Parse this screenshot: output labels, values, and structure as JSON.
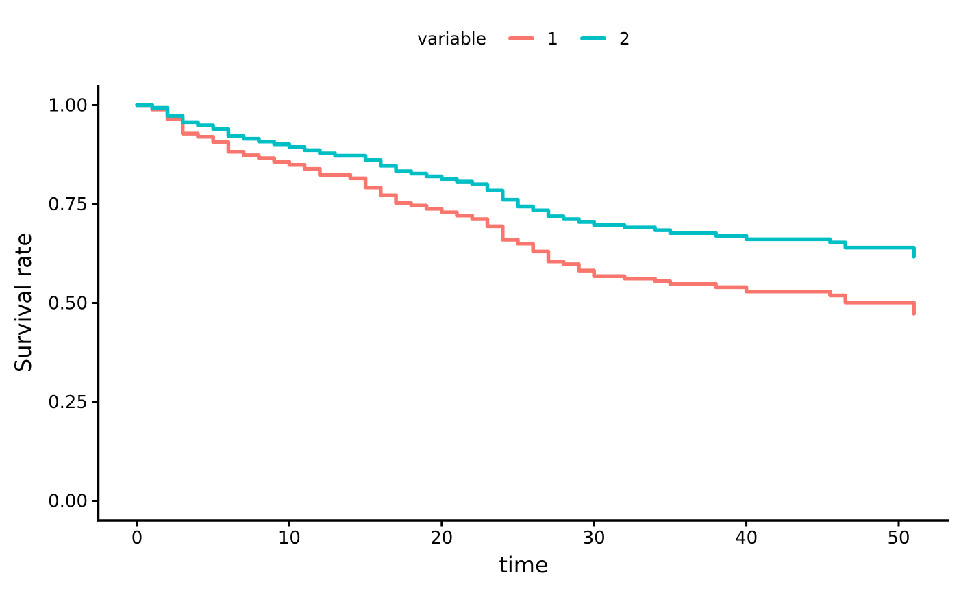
{
  "legend": {
    "title": "variable",
    "items": [
      {
        "label": "1",
        "color": "#F8766D"
      },
      {
        "label": "2",
        "color": "#00BFC4"
      }
    ]
  },
  "x_axis": {
    "label": "time",
    "ticks": [
      0,
      10,
      20,
      30,
      40,
      50
    ]
  },
  "y_axis": {
    "label": "Survival rate",
    "ticks": [
      "1.00",
      "0.75",
      "0.50",
      "0.25",
      "0.00"
    ],
    "tick_values": [
      1.0,
      0.75,
      0.5,
      0.25,
      0.0
    ]
  },
  "chart_data": {
    "type": "line",
    "subtype": "step-survival",
    "title": "",
    "xlabel": "time",
    "ylabel": "Survival rate",
    "xlim": [
      0,
      51
    ],
    "ylim": [
      0.0,
      1.0
    ],
    "grid": false,
    "legend_position": "top",
    "legend_title": "variable",
    "series": [
      {
        "name": "1",
        "color": "#F8766D",
        "points": [
          [
            0,
            1.0
          ],
          [
            1,
            0.989
          ],
          [
            2,
            0.964
          ],
          [
            3,
            0.928
          ],
          [
            4,
            0.92
          ],
          [
            5,
            0.907
          ],
          [
            6,
            0.882
          ],
          [
            7,
            0.873
          ],
          [
            8,
            0.866
          ],
          [
            9,
            0.857
          ],
          [
            10,
            0.849
          ],
          [
            11,
            0.839
          ],
          [
            12,
            0.824
          ],
          [
            14,
            0.815
          ],
          [
            15,
            0.792
          ],
          [
            16,
            0.772
          ],
          [
            17,
            0.752
          ],
          [
            18,
            0.746
          ],
          [
            19,
            0.738
          ],
          [
            20,
            0.729
          ],
          [
            21,
            0.721
          ],
          [
            22,
            0.712
          ],
          [
            23,
            0.694
          ],
          [
            24,
            0.66
          ],
          [
            25,
            0.65
          ],
          [
            26,
            0.63
          ],
          [
            27,
            0.605
          ],
          [
            28,
            0.598
          ],
          [
            29,
            0.582
          ],
          [
            30,
            0.568
          ],
          [
            32,
            0.562
          ],
          [
            34,
            0.555
          ],
          [
            35,
            0.548
          ],
          [
            38,
            0.54
          ],
          [
            40,
            0.529
          ],
          [
            45.5,
            0.519
          ],
          [
            46.5,
            0.501
          ],
          [
            51,
            0.473
          ]
        ]
      },
      {
        "name": "2",
        "color": "#00BFC4",
        "points": [
          [
            0,
            1.0
          ],
          [
            1,
            0.993
          ],
          [
            2,
            0.973
          ],
          [
            3,
            0.957
          ],
          [
            4,
            0.949
          ],
          [
            5,
            0.94
          ],
          [
            6,
            0.922
          ],
          [
            7,
            0.915
          ],
          [
            8,
            0.908
          ],
          [
            9,
            0.901
          ],
          [
            10,
            0.894
          ],
          [
            11,
            0.886
          ],
          [
            12,
            0.878
          ],
          [
            13,
            0.872
          ],
          [
            15,
            0.861
          ],
          [
            16,
            0.847
          ],
          [
            17,
            0.833
          ],
          [
            18,
            0.827
          ],
          [
            19,
            0.82
          ],
          [
            20,
            0.813
          ],
          [
            21,
            0.807
          ],
          [
            22,
            0.8
          ],
          [
            23,
            0.784
          ],
          [
            24,
            0.761
          ],
          [
            25,
            0.744
          ],
          [
            26,
            0.734
          ],
          [
            27,
            0.719
          ],
          [
            28,
            0.712
          ],
          [
            29,
            0.705
          ],
          [
            30,
            0.697
          ],
          [
            32,
            0.691
          ],
          [
            34,
            0.684
          ],
          [
            35,
            0.677
          ],
          [
            38,
            0.67
          ],
          [
            40,
            0.661
          ],
          [
            45.5,
            0.653
          ],
          [
            46.5,
            0.64
          ],
          [
            51,
            0.617
          ]
        ]
      }
    ]
  }
}
